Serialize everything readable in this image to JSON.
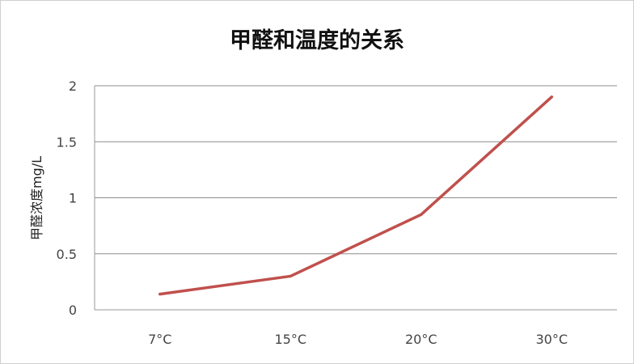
{
  "chart_data": {
    "type": "line",
    "title": "甲醛和温度的关系",
    "xlabel": "",
    "ylabel": "甲醛浓度mg/L",
    "categories": [
      "7°C",
      "15°C",
      "20°C",
      "30°C"
    ],
    "series": [
      {
        "values": [
          0.14,
          0.3,
          0.85,
          1.9
        ],
        "color": "#c0504d"
      }
    ],
    "ylim": [
      0,
      2
    ],
    "yticks": [
      "0",
      "0.5",
      "1",
      "1.5",
      "2"
    ],
    "grid": true,
    "legend": "none"
  }
}
